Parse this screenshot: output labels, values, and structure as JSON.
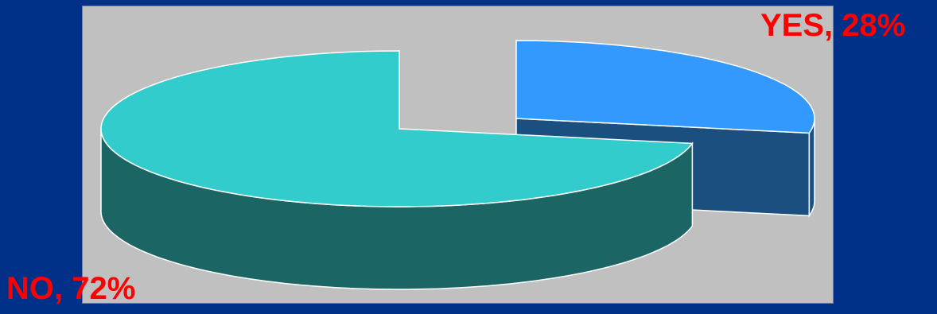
{
  "chart_data": {
    "type": "pie",
    "three_d": true,
    "exploded_slice": "YES",
    "title": "",
    "categories": [
      "YES",
      "NO"
    ],
    "values": [
      28,
      72
    ],
    "labels": [
      {
        "text": "YES, 28%"
      },
      {
        "text": "NO, 72%"
      }
    ],
    "legend": "none",
    "colors": {
      "YES": {
        "top": "#3399ff",
        "side": "#1b4f7f"
      },
      "NO": {
        "top": "#33cccc",
        "side": "#1c6565"
      },
      "outline": "#ffffff",
      "plot_background": "#c0c0c0",
      "page_background": "#003087",
      "label_text": "#ff0000"
    }
  }
}
